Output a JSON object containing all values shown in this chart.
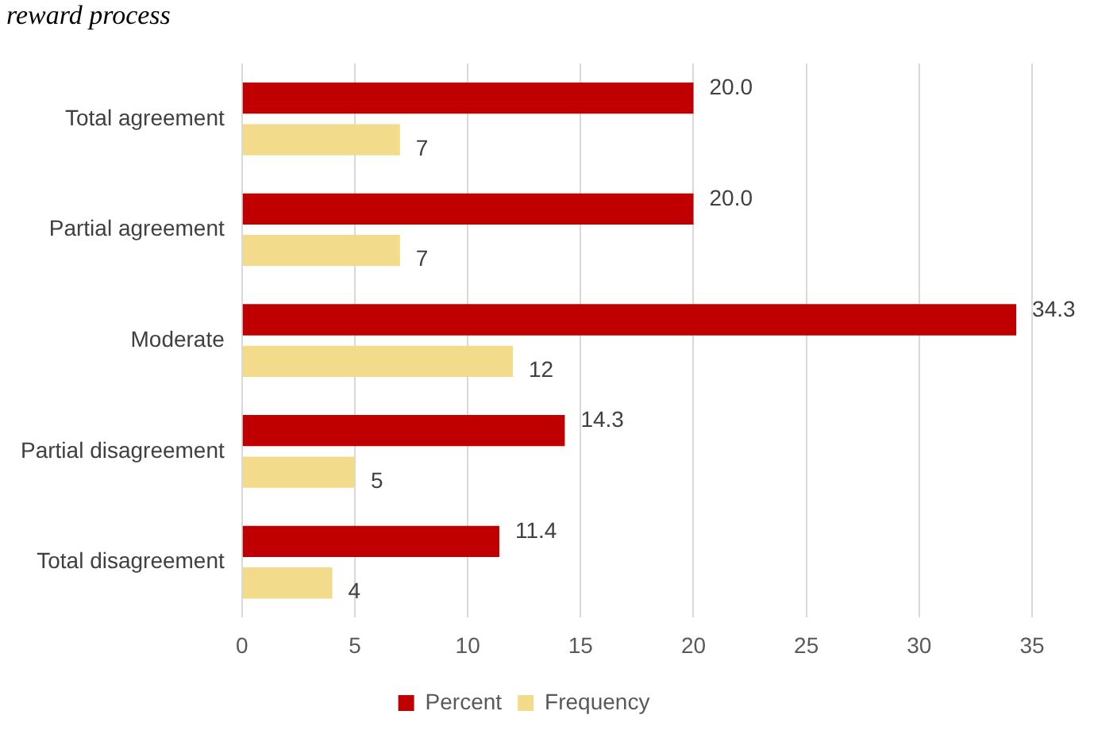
{
  "chart_data": {
    "type": "bar",
    "orientation": "horizontal",
    "title": "reward process",
    "categories": [
      "Total agreement",
      "Partial agreement",
      "Moderate",
      "Partial disagreement",
      "Total disagreement"
    ],
    "series": [
      {
        "name": "Percent",
        "color": "#c00000",
        "values": [
          20.0,
          20.0,
          34.3,
          14.3,
          11.4
        ],
        "value_labels": [
          "20.0",
          "20.0",
          "34.3",
          "14.3",
          "11.4"
        ]
      },
      {
        "name": "Frequency",
        "color": "#f2dc8c",
        "values": [
          7,
          7,
          12,
          5,
          4
        ],
        "value_labels": [
          "7",
          "7",
          "12",
          "5",
          "4"
        ]
      }
    ],
    "xlim": [
      0,
      35
    ],
    "xticks": [
      0,
      5,
      10,
      15,
      20,
      25,
      30,
      35
    ],
    "grid": "x",
    "legend": "bottom"
  }
}
